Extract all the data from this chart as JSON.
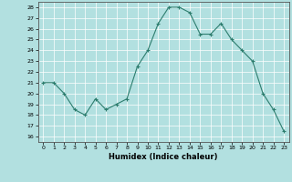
{
  "x": [
    0,
    1,
    2,
    3,
    4,
    5,
    6,
    7,
    8,
    9,
    10,
    11,
    12,
    13,
    14,
    15,
    16,
    17,
    18,
    19,
    20,
    21,
    22,
    23
  ],
  "y": [
    21,
    21,
    20,
    18.5,
    18,
    19.5,
    18.5,
    19,
    19.5,
    22.5,
    24,
    26.5,
    28,
    28,
    27.5,
    25.5,
    25.5,
    26.5,
    25,
    24,
    23,
    20,
    18.5,
    16.5
  ],
  "line_color": "#2d7d6e",
  "marker_color": "#2d7d6e",
  "bg_color": "#b2e0e0",
  "grid_color": "#ffffff",
  "xlabel": "Humidex (Indice chaleur)",
  "ylabel_ticks": [
    16,
    17,
    18,
    19,
    20,
    21,
    22,
    23,
    24,
    25,
    26,
    27,
    28
  ],
  "ylim": [
    15.5,
    28.5
  ],
  "xlim": [
    -0.5,
    23.5
  ]
}
